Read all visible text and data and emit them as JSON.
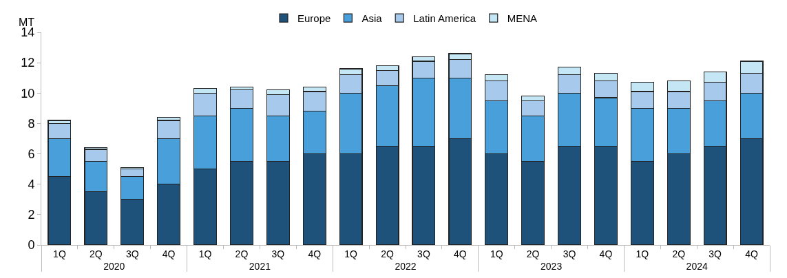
{
  "chart_data": {
    "type": "bar",
    "stacked": true,
    "ylabel": "MT",
    "categories": [
      "1Q",
      "2Q",
      "3Q",
      "4Q",
      "1Q",
      "2Q",
      "3Q",
      "4Q",
      "1Q",
      "2Q",
      "3Q",
      "4Q",
      "1Q",
      "2Q",
      "3Q",
      "4Q",
      "1Q",
      "2Q",
      "3Q",
      "4Q"
    ],
    "annotations": [
      "2020",
      "2021",
      "2022",
      "2023",
      "2024"
    ],
    "series": [
      {
        "name": "Europe",
        "color": "#1f527a",
        "values": [
          4.5,
          3.5,
          3.0,
          4.0,
          5.0,
          5.5,
          5.5,
          6.0,
          6.0,
          6.5,
          6.5,
          7.0,
          6.0,
          5.5,
          6.5,
          6.5,
          5.5,
          6.0,
          6.5,
          7.0
        ]
      },
      {
        "name": "Asia",
        "color": "#489fd9",
        "values": [
          2.5,
          2.0,
          1.5,
          3.0,
          3.5,
          3.5,
          3.0,
          2.8,
          4.0,
          4.0,
          4.5,
          4.0,
          3.5,
          3.0,
          3.5,
          3.2,
          3.5,
          3.0,
          3.0,
          3.0
        ]
      },
      {
        "name": "Latin America",
        "color": "#a7c9ec",
        "values": [
          1.0,
          0.8,
          0.5,
          1.2,
          1.5,
          1.2,
          1.4,
          1.3,
          1.2,
          1.0,
          1.1,
          1.2,
          1.3,
          1.0,
          1.2,
          1.1,
          1.1,
          1.1,
          1.2,
          1.3
        ]
      },
      {
        "name": "MENA",
        "color": "#c5e6f5",
        "values": [
          0.2,
          0.1,
          0.1,
          0.2,
          0.3,
          0.2,
          0.3,
          0.3,
          0.4,
          0.3,
          0.3,
          0.4,
          0.4,
          0.3,
          0.5,
          0.5,
          0.6,
          0.7,
          0.7,
          0.8
        ]
      }
    ],
    "ylim": [
      0,
      14
    ],
    "yticks": [
      0,
      2,
      4,
      6,
      8,
      10,
      12,
      14
    ],
    "legend": "top"
  }
}
